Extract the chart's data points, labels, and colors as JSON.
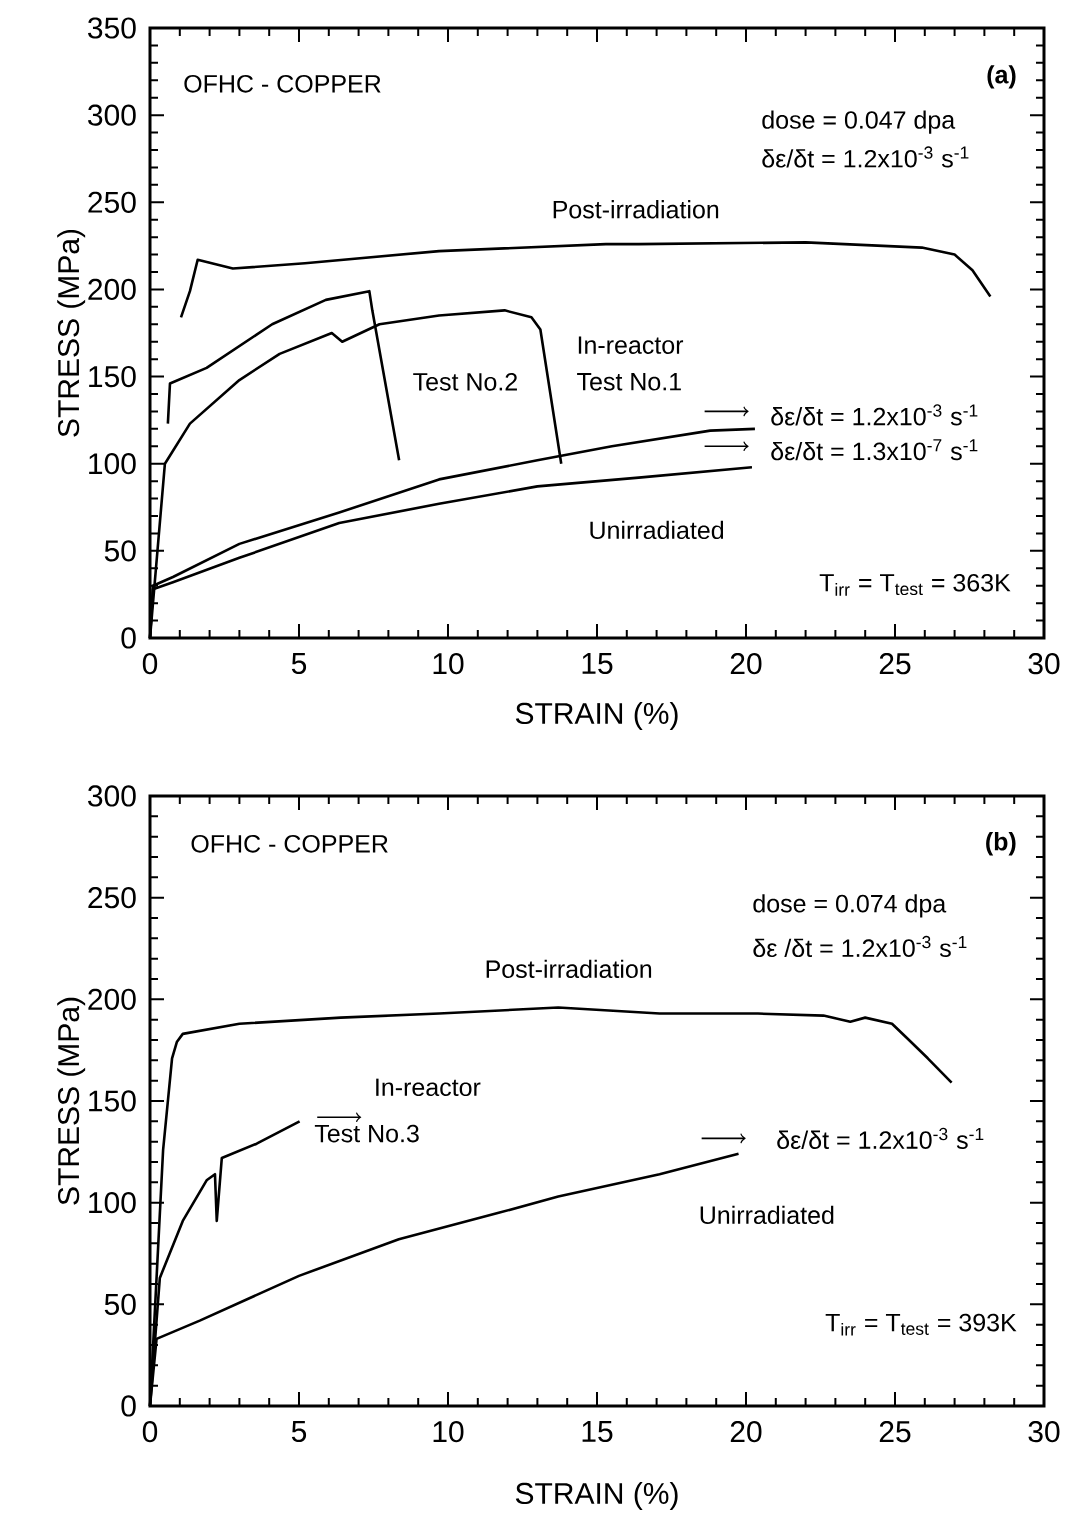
{
  "chart_data": [
    {
      "type": "line",
      "xlabel": "STRAIN (%)",
      "ylabel": "STRESS (MPa)",
      "xlim": [
        0,
        30
      ],
      "xticks": [
        0,
        5,
        10,
        15,
        20,
        25,
        30
      ],
      "ylim": [
        0,
        350
      ],
      "yticks": [
        0,
        50,
        100,
        150,
        200,
        250,
        300,
        350
      ],
      "series": [
        {
          "color": "#000000",
          "x": [
            1.04,
            1.34,
            1.6,
            2.78,
            5.2,
            9.7,
            15.3,
            16.4,
            22,
            25.9,
            27,
            27.6,
            28.2
          ],
          "values": [
            184,
            199,
            217,
            212,
            215,
            222,
            226,
            226,
            227,
            224,
            220,
            211,
            196
          ]
        },
        {
          "color": "#000000",
          "x": [
            0.6,
            0.67,
            1.9,
            4.1,
            5.9,
            7.36,
            7.46,
            8.36
          ],
          "values": [
            123,
            146,
            155,
            180,
            194,
            199,
            188,
            102
          ]
        },
        {
          "color": "#000000",
          "x": [
            0,
            0.5,
            1.34,
            3.0,
            4.35,
            6.1,
            6.45,
            7.7,
            9.7,
            11.9,
            12.8,
            13.1,
            13.8
          ],
          "values": [
            0,
            100,
            123,
            148,
            163,
            175,
            170,
            180,
            185,
            188,
            184,
            177,
            100
          ]
        },
        {
          "color": "#000000",
          "x": [
            0,
            0.1,
            0.77,
            3.0,
            6.35,
            9.7,
            13.0,
            15.5,
            18.8,
            20.3
          ],
          "values": [
            0,
            30,
            35,
            54,
            72,
            91,
            102,
            110,
            119,
            120
          ]
        },
        {
          "color": "#000000",
          "x": [
            0,
            0.1,
            0.77,
            3.0,
            6.35,
            9.7,
            13.0,
            16.4,
            20.2
          ],
          "values": [
            0,
            28,
            32,
            46,
            66,
            77,
            87,
            92,
            98
          ]
        }
      ],
      "annotations": [
        "OFHC - COPPER",
        "(a)",
        "dose = 0.047 dpa",
        "δε/δt = 1.2x10$^{-3}$ s$^{-1}$",
        "Post-irradiation",
        "In-reactor",
        "Test No.1",
        "Test No.2",
        "δε/δt = 1.2x10$^{-3}$ s$^{-1}$",
        "δε/δt = 1.3x10$^{-7}$ s$^{-1}$",
        "Unirradiated",
        "T$_{irr}$ = T$_{test}$ = 363K"
      ]
    },
    {
      "type": "line",
      "xlabel": "STRAIN (%)",
      "ylabel": "STRESS (MPa)",
      "xlim": [
        0,
        30
      ],
      "xticks": [
        0,
        5,
        10,
        15,
        20,
        25,
        30
      ],
      "ylim": [
        0,
        300
      ],
      "yticks": [
        0,
        50,
        100,
        150,
        200,
        250,
        300
      ],
      "series": [
        {
          "color": "#000000",
          "x": [
            0,
            0.44,
            0.74,
            0.9,
            1.1,
            3.0,
            6.4,
            9.7,
            13.7,
            17.1,
            20.4,
            22.6,
            23.5,
            24.0,
            24.9,
            25.4,
            26.1,
            26.9
          ],
          "values": [
            0,
            126,
            171,
            179,
            183,
            188,
            191,
            193,
            196,
            193,
            193,
            192,
            189,
            191,
            188,
            181,
            171,
            159
          ]
        },
        {
          "color": "#000000",
          "x": [
            0,
            0.33,
            1.1,
            1.9,
            2.18,
            2.24,
            2.41,
            3.58,
            5.02
          ],
          "values": [
            0,
            63,
            91,
            111,
            114,
            91,
            122,
            129,
            140
          ]
        },
        {
          "color": "#000000",
          "x": [
            0,
            0.22,
            1.67,
            5.0,
            8.35,
            11.7,
            13.7,
            17.1,
            19.75
          ],
          "values": [
            0,
            33,
            42,
            64,
            82,
            95,
            103,
            114,
            124
          ]
        }
      ],
      "annotations": [
        "OFHC - COPPER",
        "(b)",
        "dose = 0.074 dpa",
        "δε /δt = 1.2x10$^{-3}$ s$^{-1}$",
        "Post-irradiation",
        "In-reactor",
        "Test No.3",
        "δε/δt = 1.2x10$^{-3}$ s$^{-1}$",
        "Unirradiated",
        "T$_{irr}$ = T$_{test}$ = 393K"
      ]
    }
  ]
}
